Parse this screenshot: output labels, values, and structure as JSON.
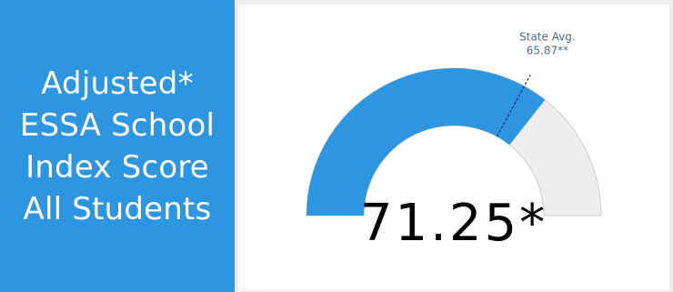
{
  "label": {
    "lines": [
      "Adjusted*",
      "ESSA School",
      "Index Score",
      "All Students"
    ]
  },
  "chart_data": {
    "type": "gauge",
    "min": 0,
    "max": 100,
    "value": 71.25,
    "value_label": "71.25*",
    "reference": {
      "name": "State Avg.",
      "value": 65.87,
      "label": "65.87**"
    }
  },
  "colors": {
    "panel_background": "#2e96e0",
    "gauge_fill": "#2e96e0",
    "gauge_track": "#eeeeee",
    "gauge_border": "#cccccc",
    "reference_line": "#1a237e",
    "reference_text": "#4a6b8a"
  }
}
